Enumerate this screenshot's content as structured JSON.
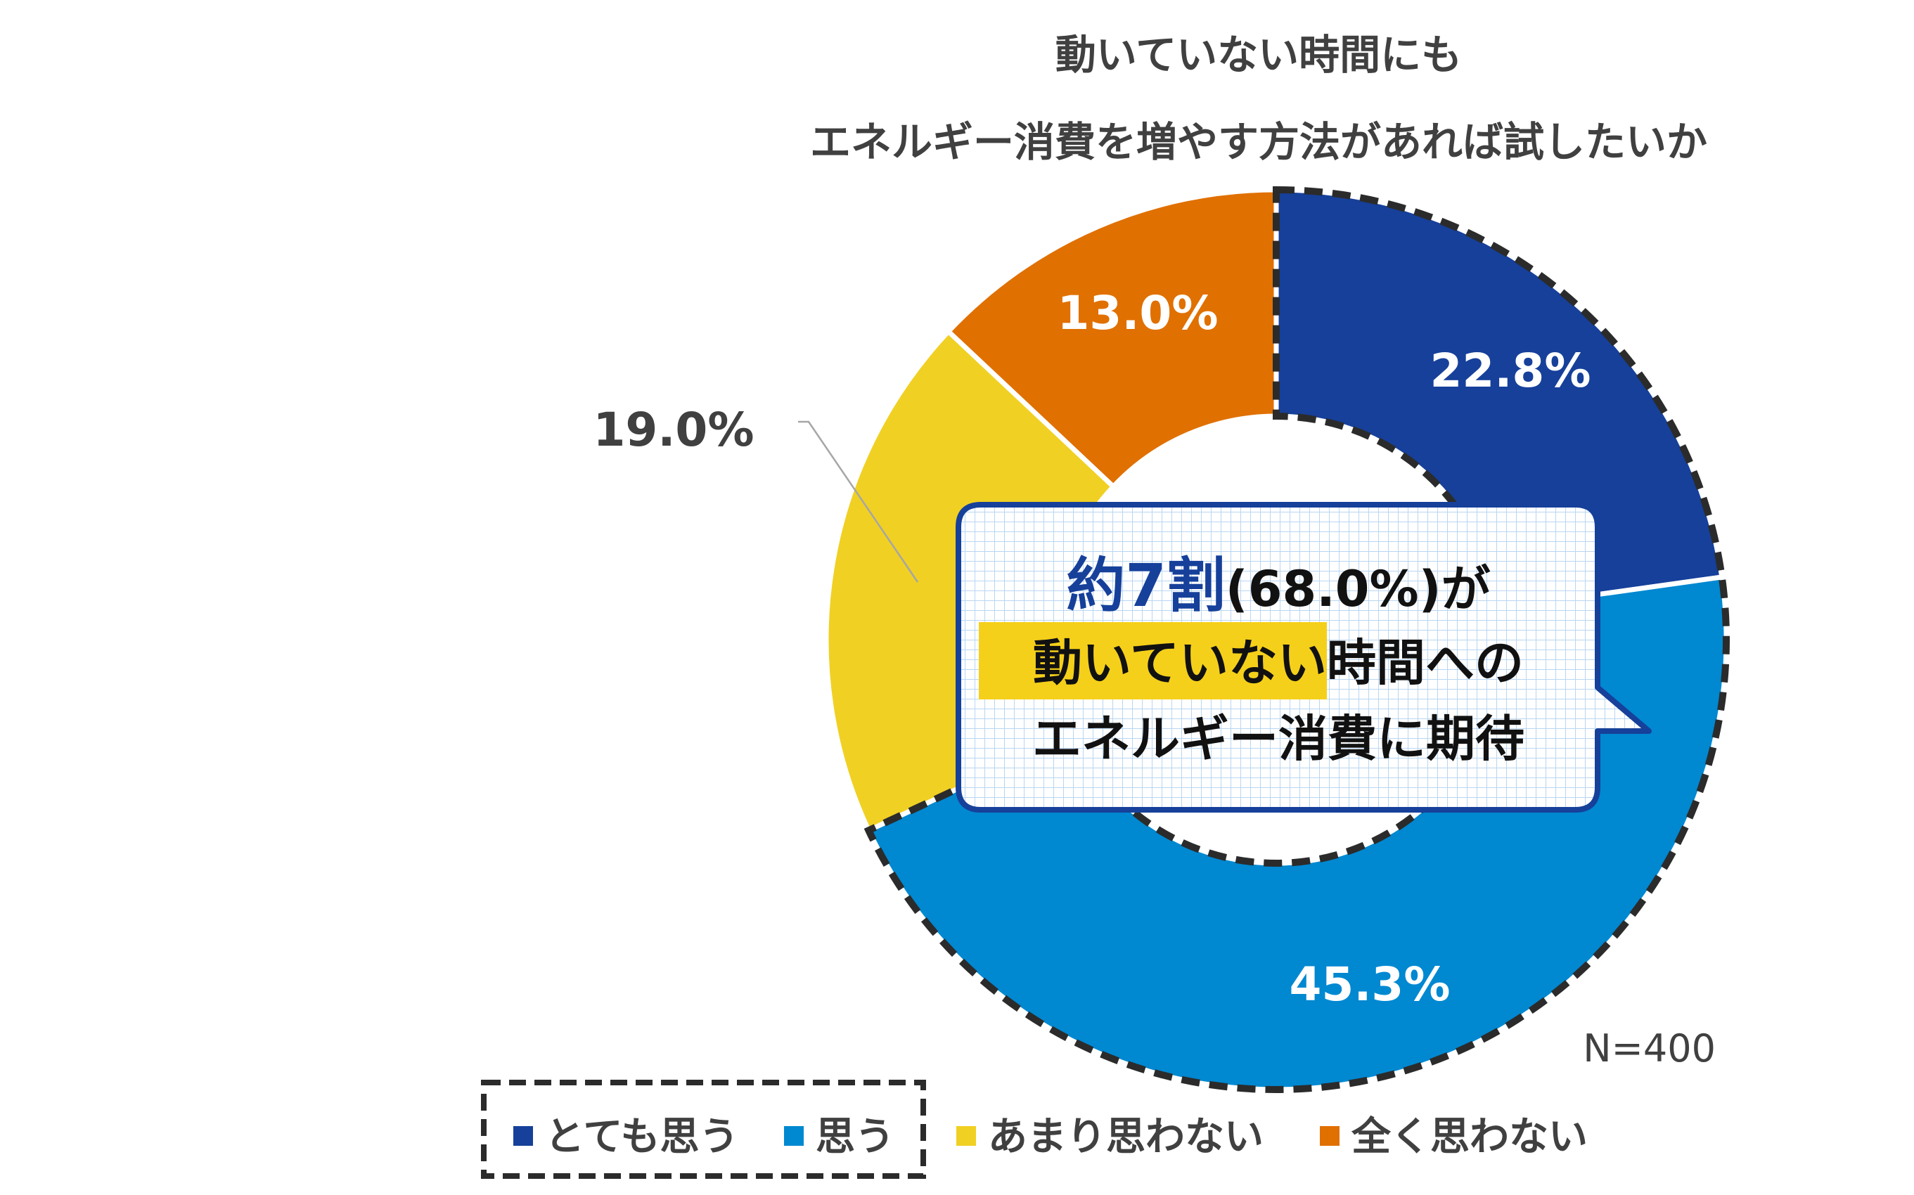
{
  "chart_data": {
    "type": "pie",
    "title_lines": [
      "動いていない時間にも",
      "エネルギー消費を増やす方法があれば試したいか"
    ],
    "categories": [
      "とても思う",
      "思う",
      "あまり思わない",
      "全く思わない"
    ],
    "values": [
      22.8,
      45.3,
      19.0,
      13.0
    ],
    "value_labels": [
      "22.8%",
      "45.3%",
      "19.0%",
      "13.0%"
    ],
    "colors": [
      "#16409a",
      "#0088d1",
      "#f0d023",
      "#e07000"
    ],
    "donut": true,
    "highlighted_categories": [
      "とても思う",
      "思う"
    ],
    "legend_position": "bottom",
    "sample_note": "N=400"
  },
  "callout": {
    "highlight": "約7割",
    "rest_line1": "(68.0%)が",
    "line2_highlight": "動いていない時間",
    "line2_rest": "への",
    "line3": "エネルギー消費に期待",
    "highlight_color": "#f5d01a"
  }
}
